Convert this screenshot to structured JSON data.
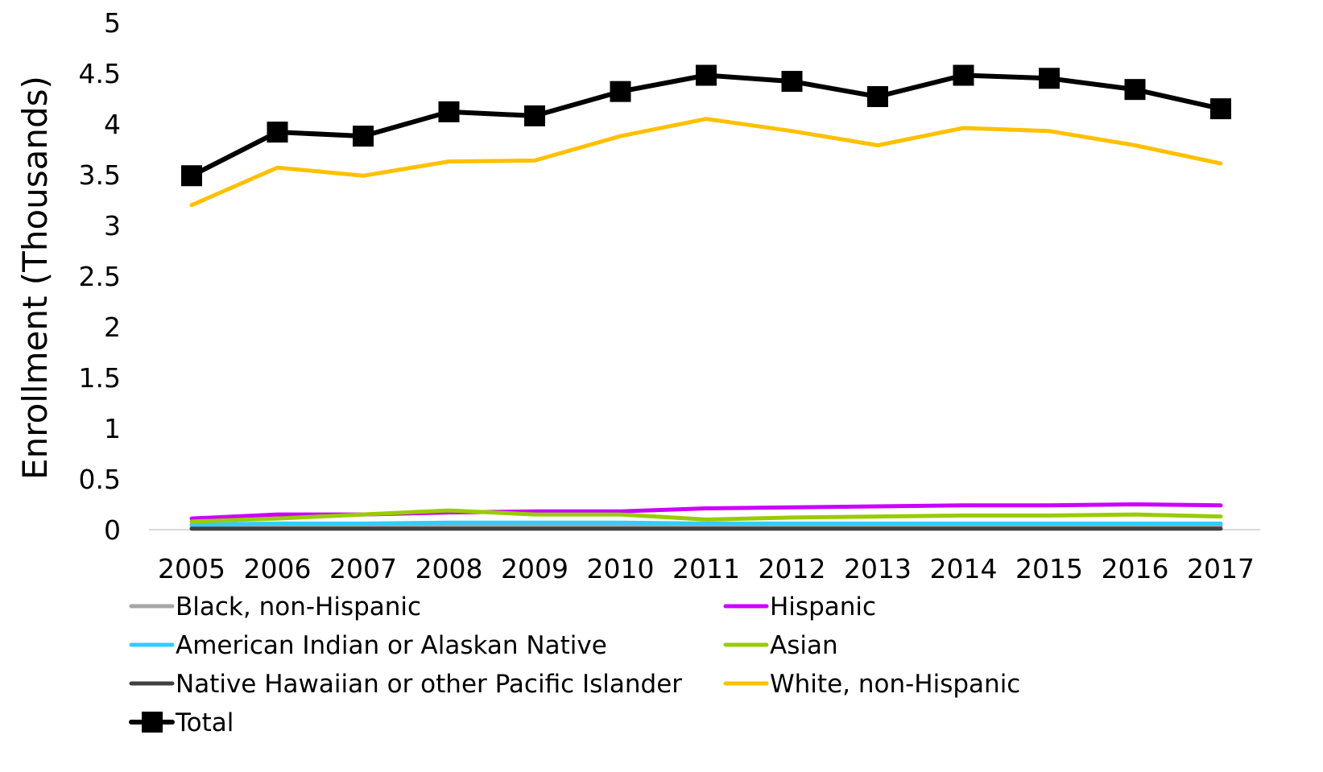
{
  "chart_data": {
    "type": "line",
    "title": "",
    "xlabel": "",
    "ylabel": "Enrollment (Thousands)",
    "ylim": [
      0,
      5
    ],
    "yticks": [
      "0",
      "0.5",
      "1",
      "1.5",
      "2",
      "2.5",
      "3",
      "3.5",
      "4",
      "4.5",
      "5"
    ],
    "grid": false,
    "legend_position": "bottom",
    "categories": [
      "2005",
      "2006",
      "2007",
      "2008",
      "2009",
      "2010",
      "2011",
      "2012",
      "2013",
      "2014",
      "2015",
      "2016",
      "2017"
    ],
    "series": [
      {
        "name": "Black, non-Hispanic",
        "color": "#A6A6A6",
        "marker": "none",
        "values": [
          0.04,
          0.04,
          0.04,
          0.04,
          0.04,
          0.04,
          0.04,
          0.04,
          0.04,
          0.04,
          0.04,
          0.04,
          0.04
        ]
      },
      {
        "name": "Hispanic",
        "color": "#CC00FF",
        "marker": "none",
        "values": [
          0.11,
          0.15,
          0.15,
          0.17,
          0.18,
          0.18,
          0.21,
          0.22,
          0.23,
          0.24,
          0.24,
          0.25,
          0.24
        ]
      },
      {
        "name": "American Indian or Alaskan Native",
        "color": "#33CCFF",
        "marker": "none",
        "values": [
          0.05,
          0.06,
          0.06,
          0.07,
          0.07,
          0.07,
          0.06,
          0.06,
          0.06,
          0.06,
          0.06,
          0.06,
          0.06
        ]
      },
      {
        "name": "Asian",
        "color": "#99CC00",
        "marker": "none",
        "values": [
          0.08,
          0.11,
          0.15,
          0.19,
          0.15,
          0.15,
          0.1,
          0.12,
          0.13,
          0.14,
          0.14,
          0.15,
          0.13
        ]
      },
      {
        "name": "Native Hawaiian or other Pacific Islander",
        "color": "#404040",
        "marker": "none",
        "values": [
          0.01,
          0.01,
          0.01,
          0.01,
          0.01,
          0.01,
          0.01,
          0.01,
          0.01,
          0.01,
          0.01,
          0.01,
          0.01
        ]
      },
      {
        "name": "White, non-Hispanic",
        "color": "#FFC000",
        "marker": "none",
        "values": [
          3.2,
          3.57,
          3.49,
          3.63,
          3.64,
          3.88,
          4.05,
          3.93,
          3.79,
          3.96,
          3.93,
          3.79,
          3.61
        ]
      },
      {
        "name": "Total",
        "color": "#000000",
        "marker": "square",
        "values": [
          3.49,
          3.92,
          3.88,
          4.12,
          4.08,
          4.32,
          4.48,
          4.42,
          4.27,
          4.48,
          4.45,
          4.34,
          4.15
        ]
      }
    ]
  }
}
